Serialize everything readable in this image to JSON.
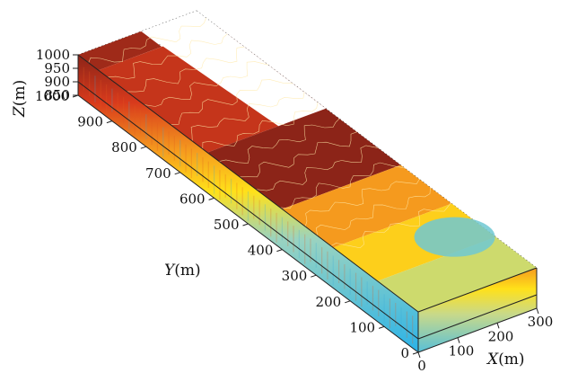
{
  "chart_data": {
    "type": "3d-block",
    "title": "",
    "xlabel": {
      "symbol": "X",
      "unit": "(m)"
    },
    "ylabel": {
      "symbol": "Y",
      "unit": "(m)"
    },
    "zlabel": {
      "symbol": "Z",
      "unit": "(m)"
    },
    "x_ticks": [
      "0",
      "100",
      "200",
      "300"
    ],
    "y_ticks": [
      "0",
      "100",
      "200",
      "300",
      "400",
      "500",
      "600",
      "700",
      "800",
      "900",
      "1000"
    ],
    "z_ticks": [
      "850",
      "900",
      "950",
      "1000"
    ],
    "xlim": [
      0,
      300
    ],
    "ylim": [
      0,
      1000
    ],
    "zlim": [
      850,
      1000
    ],
    "colormap": [
      "#2bb3e8",
      "#9ad3c0",
      "#ffe11a",
      "#f59a1e",
      "#d83a1c",
      "#8c2418"
    ],
    "contour_color": "#ffe9a8",
    "surface_zones": [
      {
        "y_range": [
          940,
          1000
        ],
        "level": 0.95
      },
      {
        "y_range": [
          620,
          940
        ],
        "level": 0.85
      },
      {
        "y_range": [
          400,
          620
        ],
        "level": 1.0
      },
      {
        "y_range": [
          250,
          400
        ],
        "level": 0.6
      },
      {
        "y_range": [
          120,
          250
        ],
        "level": 0.45
      },
      {
        "y_range": [
          0,
          120
        ],
        "level": 0.3
      }
    ]
  }
}
